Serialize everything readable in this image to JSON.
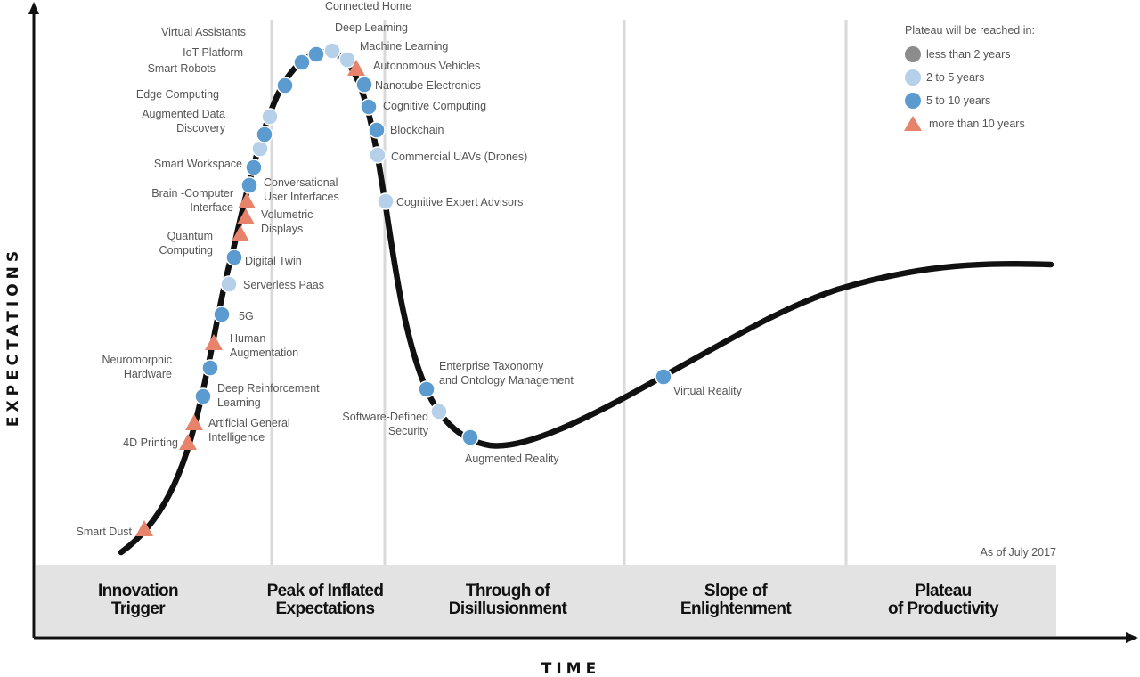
{
  "chart_data": {
    "type": "line",
    "annotation": "As of July 2017",
    "xlabel": "TIME",
    "ylabel": "EXPECTATIONS",
    "phases": [
      "Innovation\nTrigger",
      "Peak of Inflated\nExpectations",
      "Through of\nDisillusionment",
      "Slope of\nEnlightenment",
      "Plateau\nof Productivity"
    ],
    "legend": {
      "title": "Plateau will be reached in:",
      "position": "top-right",
      "items": [
        {
          "key": "lt2",
          "label": "less than 2 years",
          "shape": "circle",
          "color": "#8c8c8c"
        },
        {
          "key": "2to5",
          "label": "2 to 5 years",
          "shape": "circle",
          "color": "#b5d0e8"
        },
        {
          "key": "5to10",
          "label": "5  to 10 years",
          "shape": "circle",
          "color": "#5b9bd0"
        },
        {
          "key": "gt10",
          "label": "more than 10 years",
          "shape": "triangle",
          "color": "#e8836b"
        }
      ]
    },
    "technologies": [
      {
        "name": "Smart Dust",
        "category": "gt10"
      },
      {
        "name": "4D Printing",
        "category": "gt10"
      },
      {
        "name": "Artificial General\nIntelligence",
        "category": "gt10"
      },
      {
        "name": "Deep Reinforcement\nLearning",
        "category": "5to10"
      },
      {
        "name": "Neuromorphic\nHardware",
        "category": "5to10"
      },
      {
        "name": "Human\nAugmentation",
        "category": "gt10"
      },
      {
        "name": "5G",
        "category": "5to10"
      },
      {
        "name": "Serverless Paas",
        "category": "2to5"
      },
      {
        "name": "Digital Twin",
        "category": "5to10"
      },
      {
        "name": "Quantum\nComputing",
        "category": "gt10"
      },
      {
        "name": "Volumetric\nDisplays",
        "category": "gt10"
      },
      {
        "name": "Brain -Computer\nInterface",
        "category": "gt10"
      },
      {
        "name": "Conversational\nUser Interfaces",
        "category": "5to10"
      },
      {
        "name": "Smart Workspace",
        "category": "5to10"
      },
      {
        "name": "Augmented Data\nDiscovery",
        "category": "2to5"
      },
      {
        "name": "Edge Computing",
        "category": "5to10"
      },
      {
        "name": "Smart Robots",
        "category": "2to5"
      },
      {
        "name": "IoT Platform",
        "category": "5to10"
      },
      {
        "name": "Virtual Assistants",
        "category": "5to10"
      },
      {
        "name": "Connected Home",
        "category": "5to10"
      },
      {
        "name": "Deep Learning",
        "category": "2to5"
      },
      {
        "name": "Machine Learning",
        "category": "2to5"
      },
      {
        "name": "Autonomous Vehicles",
        "category": "gt10"
      },
      {
        "name": "Nanotube Electronics",
        "category": "5to10"
      },
      {
        "name": "Cognitive Computing",
        "category": "5to10"
      },
      {
        "name": "Blockchain",
        "category": "5to10"
      },
      {
        "name": "Commercial UAVs (Drones)",
        "category": "2to5"
      },
      {
        "name": "Cognitive Expert Advisors",
        "category": "2to5"
      },
      {
        "name": "Enterprise Taxonomy\nand Ontology Management",
        "category": "5to10"
      },
      {
        "name": "Software-Defined\nSecurity",
        "category": "2to5"
      },
      {
        "name": "Augmented Reality",
        "category": "5to10"
      },
      {
        "name": "Virtual Reality",
        "category": "5to10"
      }
    ]
  }
}
